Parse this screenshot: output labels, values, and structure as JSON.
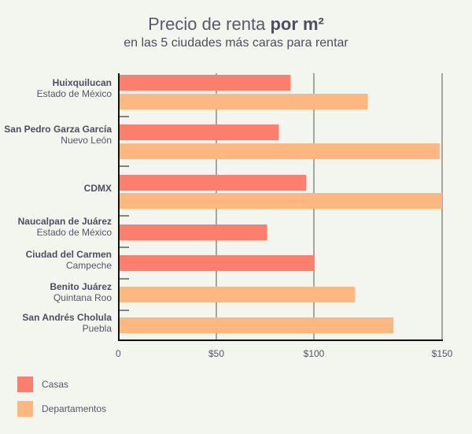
{
  "chart_data": {
    "type": "bar",
    "orientation": "horizontal",
    "title": "Precio de renta",
    "title_bold": "por m²",
    "subtitle": "en las 5 ciudades más caras para rentar",
    "categories": [
      {
        "name": "Huixquilucan",
        "sub": "Estado de México"
      },
      {
        "name": "San Pedro Garza García",
        "sub": "Nuevo León"
      },
      {
        "name": "CDMX",
        "sub": ""
      },
      {
        "name": "Naucalpan de Juárez",
        "sub": "Estado de México"
      },
      {
        "name": "Ciudad del Carmen",
        "sub": "Campeche"
      },
      {
        "name": "Benito Juárez",
        "sub": "Quintana Roo"
      },
      {
        "name": "San Andrés Cholula",
        "sub": "Puebla"
      }
    ],
    "series": [
      {
        "name": "Casas",
        "color": "#fb7f6c",
        "values": [
          88,
          82,
          96,
          76,
          100,
          null,
          null
        ]
      },
      {
        "name": "Departamentos",
        "color": "#fdb781",
        "values": [
          121,
          149,
          150,
          null,
          null,
          116,
          131
        ]
      }
    ],
    "xticks": [
      0,
      50,
      100,
      150
    ],
    "xtick_labels": [
      "0",
      "$50",
      "$100",
      "$150"
    ],
    "xlim": [
      0,
      150
    ],
    "grid": true,
    "legend": "bottom-left"
  }
}
